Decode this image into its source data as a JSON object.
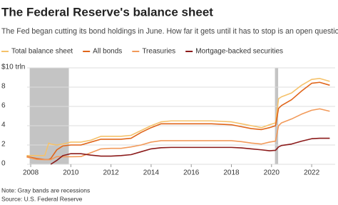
{
  "chart_data": {
    "type": "line",
    "title": "The Federal Reserve's balance sheet",
    "subtitle": "The Fed began cutting its bond holdings in June. How far it gets until it has to stop is an open question.",
    "x": [
      2007.8,
      2008.3,
      2008.7,
      2008.9,
      2009.0,
      2009.3,
      2009.6,
      2010.0,
      2010.5,
      2011.0,
      2011.5,
      2012.0,
      2012.5,
      2013.0,
      2013.5,
      2014.0,
      2014.5,
      2015.0,
      2016.0,
      2017.0,
      2018.0,
      2018.5,
      2019.0,
      2019.5,
      2019.9,
      2020.2,
      2020.35,
      2020.5,
      2021.0,
      2021.5,
      2022.0,
      2022.4,
      2022.9
    ],
    "series": [
      {
        "name": "Total balance sheet",
        "color": "#f5c26b",
        "values": [
          0.9,
          0.9,
          0.9,
          2.2,
          2.1,
          2.0,
          2.1,
          2.3,
          2.3,
          2.5,
          2.9,
          2.9,
          2.9,
          3.0,
          3.5,
          4.0,
          4.4,
          4.5,
          4.5,
          4.5,
          4.4,
          4.2,
          4.0,
          3.8,
          4.1,
          4.3,
          6.8,
          7.0,
          7.4,
          8.2,
          8.8,
          8.9,
          8.6
        ]
      },
      {
        "name": "All bonds",
        "color": "#e0651a",
        "values": [
          0.8,
          0.6,
          0.5,
          0.5,
          0.6,
          1.5,
          1.9,
          2.0,
          2.0,
          2.3,
          2.6,
          2.6,
          2.6,
          2.7,
          3.3,
          3.8,
          4.2,
          4.2,
          4.2,
          4.2,
          4.1,
          3.9,
          3.7,
          3.6,
          3.8,
          4.0,
          5.8,
          6.1,
          6.7,
          7.6,
          8.4,
          8.5,
          8.2
        ]
      },
      {
        "name": "Treasuries",
        "color": "#f29a5a",
        "values": [
          0.75,
          0.5,
          0.48,
          0.48,
          0.48,
          0.8,
          0.78,
          0.78,
          0.8,
          1.2,
          1.6,
          1.65,
          1.65,
          1.8,
          2.0,
          2.3,
          2.45,
          2.45,
          2.45,
          2.45,
          2.45,
          2.35,
          2.2,
          2.1,
          2.3,
          2.4,
          4.0,
          4.3,
          4.7,
          5.2,
          5.6,
          5.75,
          5.5
        ]
      },
      {
        "name": "Mortgage-backed securities",
        "color": "#8b1a1a",
        "values": [
          null,
          null,
          null,
          null,
          0,
          0.4,
          0.9,
          1.1,
          1.1,
          0.95,
          0.85,
          0.85,
          0.9,
          1.0,
          1.3,
          1.6,
          1.72,
          1.75,
          1.75,
          1.75,
          1.75,
          1.7,
          1.6,
          1.5,
          1.4,
          1.45,
          1.8,
          1.95,
          2.1,
          2.4,
          2.65,
          2.7,
          2.7
        ]
      }
    ],
    "recessions": [
      [
        2007.95,
        2009.9
      ],
      [
        2020.17,
        2020.33
      ]
    ],
    "recession_color": "#c4c4c4",
    "xlim": [
      2007.82,
      2023.17
    ],
    "xticks": [
      2008,
      2010,
      2012,
      2014,
      2016,
      2018,
      2020,
      2022
    ],
    "ylim": [
      0,
      10
    ],
    "yticks": [
      {
        "value": 10,
        "label": "$10 trln"
      },
      8,
      6,
      4,
      2,
      0
    ],
    "grid": true,
    "notes": [
      "Note: Gray bands are recessions",
      "Source: U.S. Federal Reserve"
    ]
  }
}
